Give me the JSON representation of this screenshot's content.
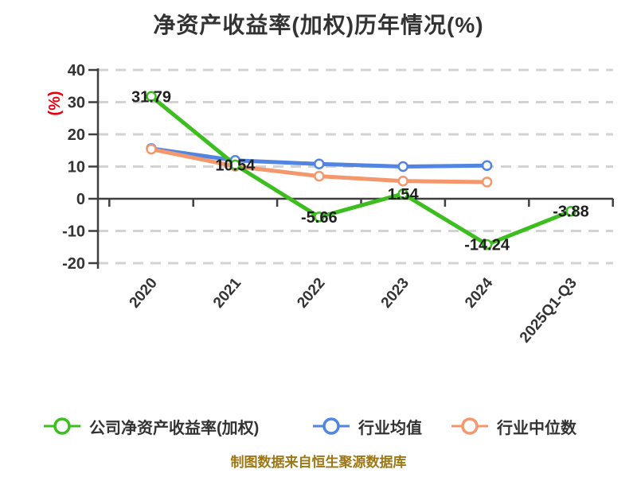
{
  "caption": "制图数据来自恒生聚源数据库",
  "colors": {
    "company_line": "#3dbe1f",
    "industry_mean_line": "#5285e2",
    "industry_median_line": "#f4976d",
    "grid": "#d3d3d3",
    "axis": "#3f3f3f",
    "tick_text": "#333333",
    "point_label_text": "#1f1f1f",
    "y_unit_label": "#e60012",
    "caption_text": "#9e7715",
    "marker_fill": "#ffffff"
  },
  "chart_data": {
    "type": "line",
    "title": "净资产收益率(加权)历年情况(%)",
    "ylabel": "(%)",
    "xlabel": "",
    "categories": [
      "2020",
      "2021",
      "2022",
      "2023",
      "2024",
      "2025Q1-Q3"
    ],
    "series": [
      {
        "name": "公司净资产收益率(加权)",
        "color": "#3dbe1f",
        "values": [
          31.79,
          10.54,
          -5.66,
          1.54,
          -14.24,
          -3.88
        ],
        "point_labels": [
          "31.79",
          "10.54",
          "-5.66",
          "1.54",
          "-14.24",
          "-3.88"
        ]
      },
      {
        "name": "行业均值",
        "color": "#5285e2",
        "values": [
          15.6,
          11.9,
          10.8,
          10.0,
          10.3,
          null
        ],
        "point_labels": [
          null,
          null,
          null,
          null,
          null,
          null
        ]
      },
      {
        "name": "行业中位数",
        "color": "#f4976d",
        "values": [
          15.4,
          10.1,
          7.0,
          5.5,
          5.2,
          null
        ],
        "point_labels": [
          null,
          null,
          null,
          null,
          null,
          null
        ]
      }
    ],
    "ylim": [
      -20,
      40
    ],
    "yticks": [
      40,
      30,
      20,
      10,
      0,
      -10,
      -20
    ],
    "grid": "horizontal dashed",
    "legend_position": "bottom"
  }
}
